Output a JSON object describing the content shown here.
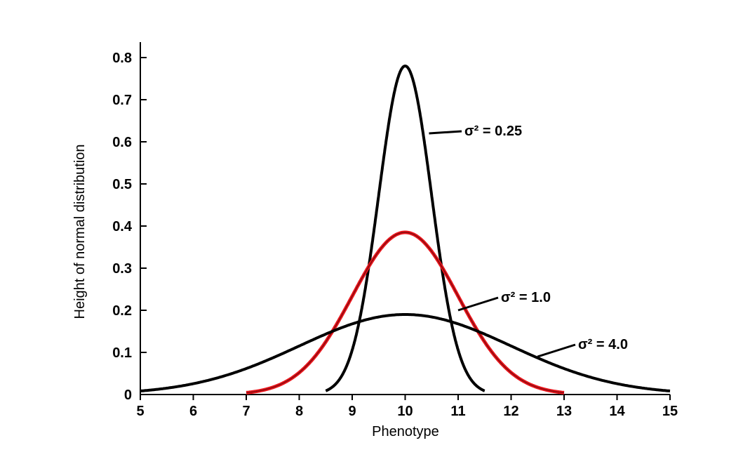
{
  "chart_data": {
    "type": "line",
    "title": "",
    "xlabel": "Phenotype",
    "ylabel": "Height of normal distribution",
    "xlim": [
      5,
      15
    ],
    "ylim": [
      0,
      0.8
    ],
    "x_ticks": [
      5,
      6,
      7,
      8,
      9,
      10,
      11,
      12,
      13,
      14,
      15
    ],
    "y_ticks": [
      0,
      0.1,
      0.2,
      0.3,
      0.4,
      0.5,
      0.6,
      0.7,
      0.8
    ],
    "grid": false,
    "legend": "none",
    "series": [
      {
        "mean": 10,
        "variance": 0.25,
        "color": "#000000",
        "label": "σ² = 0.25",
        "peak": 0.78
      },
      {
        "mean": 10,
        "variance": 1.0,
        "color": "#e8141b",
        "label": "σ² = 1.0",
        "peak": 0.385
      },
      {
        "mean": 10,
        "variance": 4.0,
        "color": "#000000",
        "label": "σ² = 4.0",
        "peak": 0.19
      }
    ],
    "annotations": [
      {
        "text": "σ² = 0.25",
        "points_to": {
          "x": 10.45,
          "y": 0.62
        }
      },
      {
        "text": "σ² = 1.0",
        "points_to": {
          "x": 11.0,
          "y": 0.2
        }
      },
      {
        "text": "σ² = 4.0",
        "points_to": {
          "x": 12.5,
          "y": 0.09
        }
      }
    ]
  }
}
